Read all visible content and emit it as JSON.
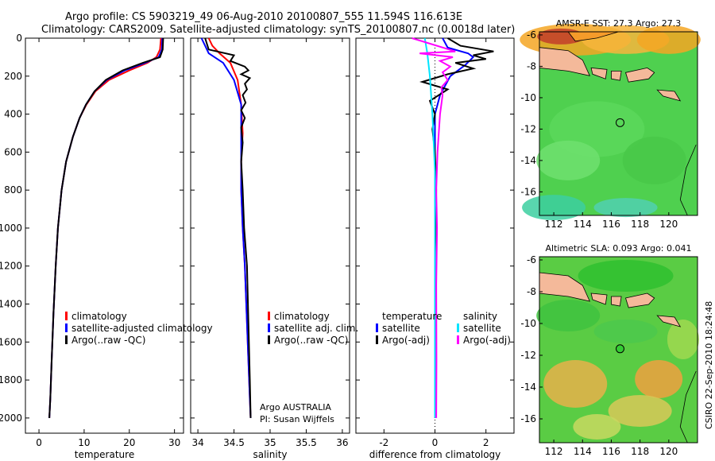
{
  "titles": {
    "line1": "Argo profile: CS 5903219_49 06-Aug-2010 20100807_555 11.594S 116.613E",
    "line2": "Climatology: CARS2009. Satellite-adjusted climatology: synTS_20100807.nc (0.0018d later)"
  },
  "credit": "CSIRO 22-Sep-2010 18:24:48",
  "colors": {
    "climatology": "#ff0000",
    "satellite": "#0000ff",
    "argo": "#000000",
    "salinity_sat": "#00e5ff",
    "salinity_argo": "#ff00ff",
    "land": "#f4b99a"
  },
  "chart_data": [
    {
      "type": "line",
      "xlabel": "temperature",
      "ylabel": "",
      "xlim": [
        -3,
        32
      ],
      "ylim": [
        2080,
        0
      ],
      "xticks": [
        0,
        10,
        20,
        30
      ],
      "yticks": [
        0,
        200,
        400,
        600,
        800,
        1000,
        1200,
        1400,
        1600,
        1800,
        2000
      ],
      "legend": [
        "climatology",
        "satellite-adjusted climatology",
        "Argo(..raw -QC)"
      ],
      "legend_position": "lower-left",
      "series": [
        {
          "name": "climatology",
          "color": "red",
          "x": [
            27.0,
            26.8,
            26.0,
            24.0,
            20.0,
            15.5,
            12.5,
            10.5,
            9.0,
            7.5,
            6.0,
            5.0,
            4.2,
            3.7,
            3.2,
            2.8,
            2.5,
            2.3
          ],
          "y": [
            0,
            60,
            100,
            130,
            170,
            220,
            280,
            350,
            420,
            520,
            650,
            800,
            1000,
            1200,
            1450,
            1700,
            1900,
            2000
          ]
        },
        {
          "name": "satellite-adjusted climatology",
          "color": "blue",
          "x": [
            27.3,
            27.2,
            26.5,
            23.5,
            19.0,
            15.0,
            12.3,
            10.4,
            9.0,
            7.5,
            6.0,
            5.0,
            4.2,
            3.7,
            3.2,
            2.8,
            2.5,
            2.3
          ],
          "y": [
            0,
            60,
            100,
            130,
            170,
            220,
            280,
            350,
            420,
            520,
            650,
            800,
            1000,
            1200,
            1450,
            1700,
            1900,
            2000
          ]
        },
        {
          "name": "Argo(..raw -QC)",
          "color": "black",
          "x": [
            27.5,
            27.4,
            26.8,
            23.0,
            18.5,
            14.8,
            12.3,
            10.4,
            9.0,
            7.5,
            6.0,
            5.0,
            4.2,
            3.7,
            3.2,
            2.8,
            2.5,
            2.3
          ],
          "y": [
            0,
            60,
            100,
            130,
            170,
            220,
            280,
            350,
            420,
            520,
            650,
            800,
            1000,
            1200,
            1450,
            1700,
            1900,
            2000
          ]
        }
      ]
    },
    {
      "type": "line",
      "xlabel": "salinity",
      "xlim": [
        33.9,
        36.1
      ],
      "ylim": [
        2080,
        0
      ],
      "xticks": [
        34,
        34.5,
        35,
        35.5,
        36
      ],
      "legend": [
        "climatology",
        "satellite adj. clim.",
        "Argo(..raw -QC)"
      ],
      "legend_position": "lower-left",
      "annotation": [
        "Argo AUSTRALIA",
        "PI: Susan Wijffels"
      ],
      "series": [
        {
          "name": "climatology",
          "color": "red",
          "x": [
            34.15,
            34.2,
            34.3,
            34.45,
            34.55,
            34.6,
            34.62,
            34.6,
            34.6,
            34.62,
            34.65,
            34.68,
            34.7,
            34.72,
            34.73
          ],
          "y": [
            0,
            40,
            80,
            130,
            220,
            350,
            500,
            650,
            800,
            1000,
            1200,
            1500,
            1700,
            1900,
            2000
          ]
        },
        {
          "name": "satellite adj. clim.",
          "color": "blue",
          "x": [
            34.05,
            34.1,
            34.15,
            34.35,
            34.5,
            34.6,
            34.6,
            34.6,
            34.6,
            34.62,
            34.65,
            34.68,
            34.7,
            34.72,
            34.73
          ],
          "y": [
            0,
            40,
            80,
            130,
            220,
            350,
            500,
            650,
            800,
            1000,
            1200,
            1500,
            1700,
            1900,
            2000
          ]
        },
        {
          "name": "Argo(..raw -QC)",
          "color": "black",
          "x": [
            34.1,
            34.15,
            34.5,
            34.45,
            34.65,
            34.7,
            34.6,
            34.72,
            34.65,
            34.68,
            34.62,
            34.66,
            34.6,
            34.65,
            34.6,
            34.62,
            34.6,
            34.62,
            34.64,
            34.68,
            34.7,
            34.72,
            34.73
          ],
          "y": [
            0,
            60,
            90,
            120,
            150,
            170,
            190,
            210,
            240,
            270,
            300,
            340,
            380,
            420,
            470,
            550,
            650,
            800,
            1000,
            1200,
            1500,
            1800,
            2000
          ]
        }
      ]
    },
    {
      "type": "line",
      "xlabel": "difference from climatology",
      "xlim": [
        -3.1,
        3.1
      ],
      "ylim": [
        2080,
        0
      ],
      "xticks": [
        -2,
        0,
        2
      ],
      "legend": [
        "temperature",
        "satellite",
        "Argo(-adj)",
        "salinity",
        "satellite",
        "Argo(-adj)"
      ],
      "legend_position": "lower",
      "series": [
        {
          "name": "temperature satellite",
          "color": "blue",
          "x": [
            0.3,
            0.5,
            1.3,
            1.5,
            1.2,
            0.6,
            0.2,
            0.0,
            0.0,
            0.0,
            0.0
          ],
          "y": [
            0,
            50,
            80,
            100,
            140,
            200,
            300,
            400,
            600,
            1000,
            2000
          ]
        },
        {
          "name": "temperature Argo(-adj)",
          "color": "black",
          "x": [
            0.5,
            1.0,
            2.3,
            1.5,
            2.0,
            0.8,
            1.5,
            0.5,
            -0.5,
            0.5,
            -0.2,
            0.0,
            -0.1,
            0.0,
            0.05,
            0.0,
            0.0
          ],
          "y": [
            0,
            40,
            70,
            90,
            110,
            130,
            160,
            190,
            230,
            270,
            330,
            400,
            480,
            600,
            800,
            1200,
            2000
          ]
        },
        {
          "name": "salinity satellite",
          "color": "cyan",
          "x": [
            -0.4,
            -0.3,
            -0.2,
            -0.1,
            0.0,
            0.0,
            0.0
          ],
          "y": [
            0,
            80,
            200,
            400,
            700,
            1200,
            2000
          ]
        },
        {
          "name": "salinity Argo(-adj)",
          "color": "magenta",
          "x": [
            -0.9,
            0.8,
            -0.6,
            0.7,
            0.2,
            0.6,
            0.3,
            0.5,
            0.25,
            0.3,
            0.2,
            0.1,
            0.05,
            0.08,
            0.05,
            0.06,
            0.05
          ],
          "y": [
            0,
            70,
            80,
            100,
            120,
            150,
            180,
            220,
            260,
            300,
            400,
            600,
            800,
            1000,
            1300,
            1700,
            2000
          ]
        }
      ]
    },
    {
      "type": "heatmap",
      "title": "AMSR-E SST: 27.3  Argo: 27.3",
      "xlim": [
        111,
        122
      ],
      "ylim": [
        -17.5,
        -5.8
      ],
      "xticks": [
        112,
        114,
        116,
        118,
        120
      ],
      "yticks": [
        -6,
        -8,
        -10,
        -12,
        -14,
        -16
      ],
      "marker": {
        "x": 116.61,
        "y": -11.59,
        "style": "open-circle"
      }
    },
    {
      "type": "heatmap",
      "title": "Altimetric SLA: 0.093  Argo: 0.041",
      "xlim": [
        111,
        122
      ],
      "ylim": [
        -17.5,
        -5.8
      ],
      "xticks": [
        112,
        114,
        116,
        118,
        120
      ],
      "yticks": [
        -6,
        -8,
        -10,
        -12,
        -14,
        -16
      ],
      "marker": {
        "x": 116.61,
        "y": -11.59,
        "style": "filled-green-circle"
      }
    }
  ]
}
